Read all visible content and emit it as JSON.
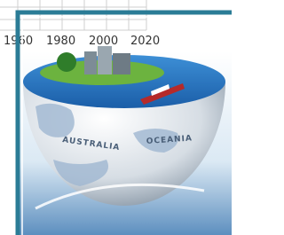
{
  "axis": {
    "tick_labels": [
      "1960",
      "1980",
      "2000",
      "2020"
    ]
  },
  "map_labels": [
    "AUSTRALIA",
    "OCEANIA"
  ]
}
